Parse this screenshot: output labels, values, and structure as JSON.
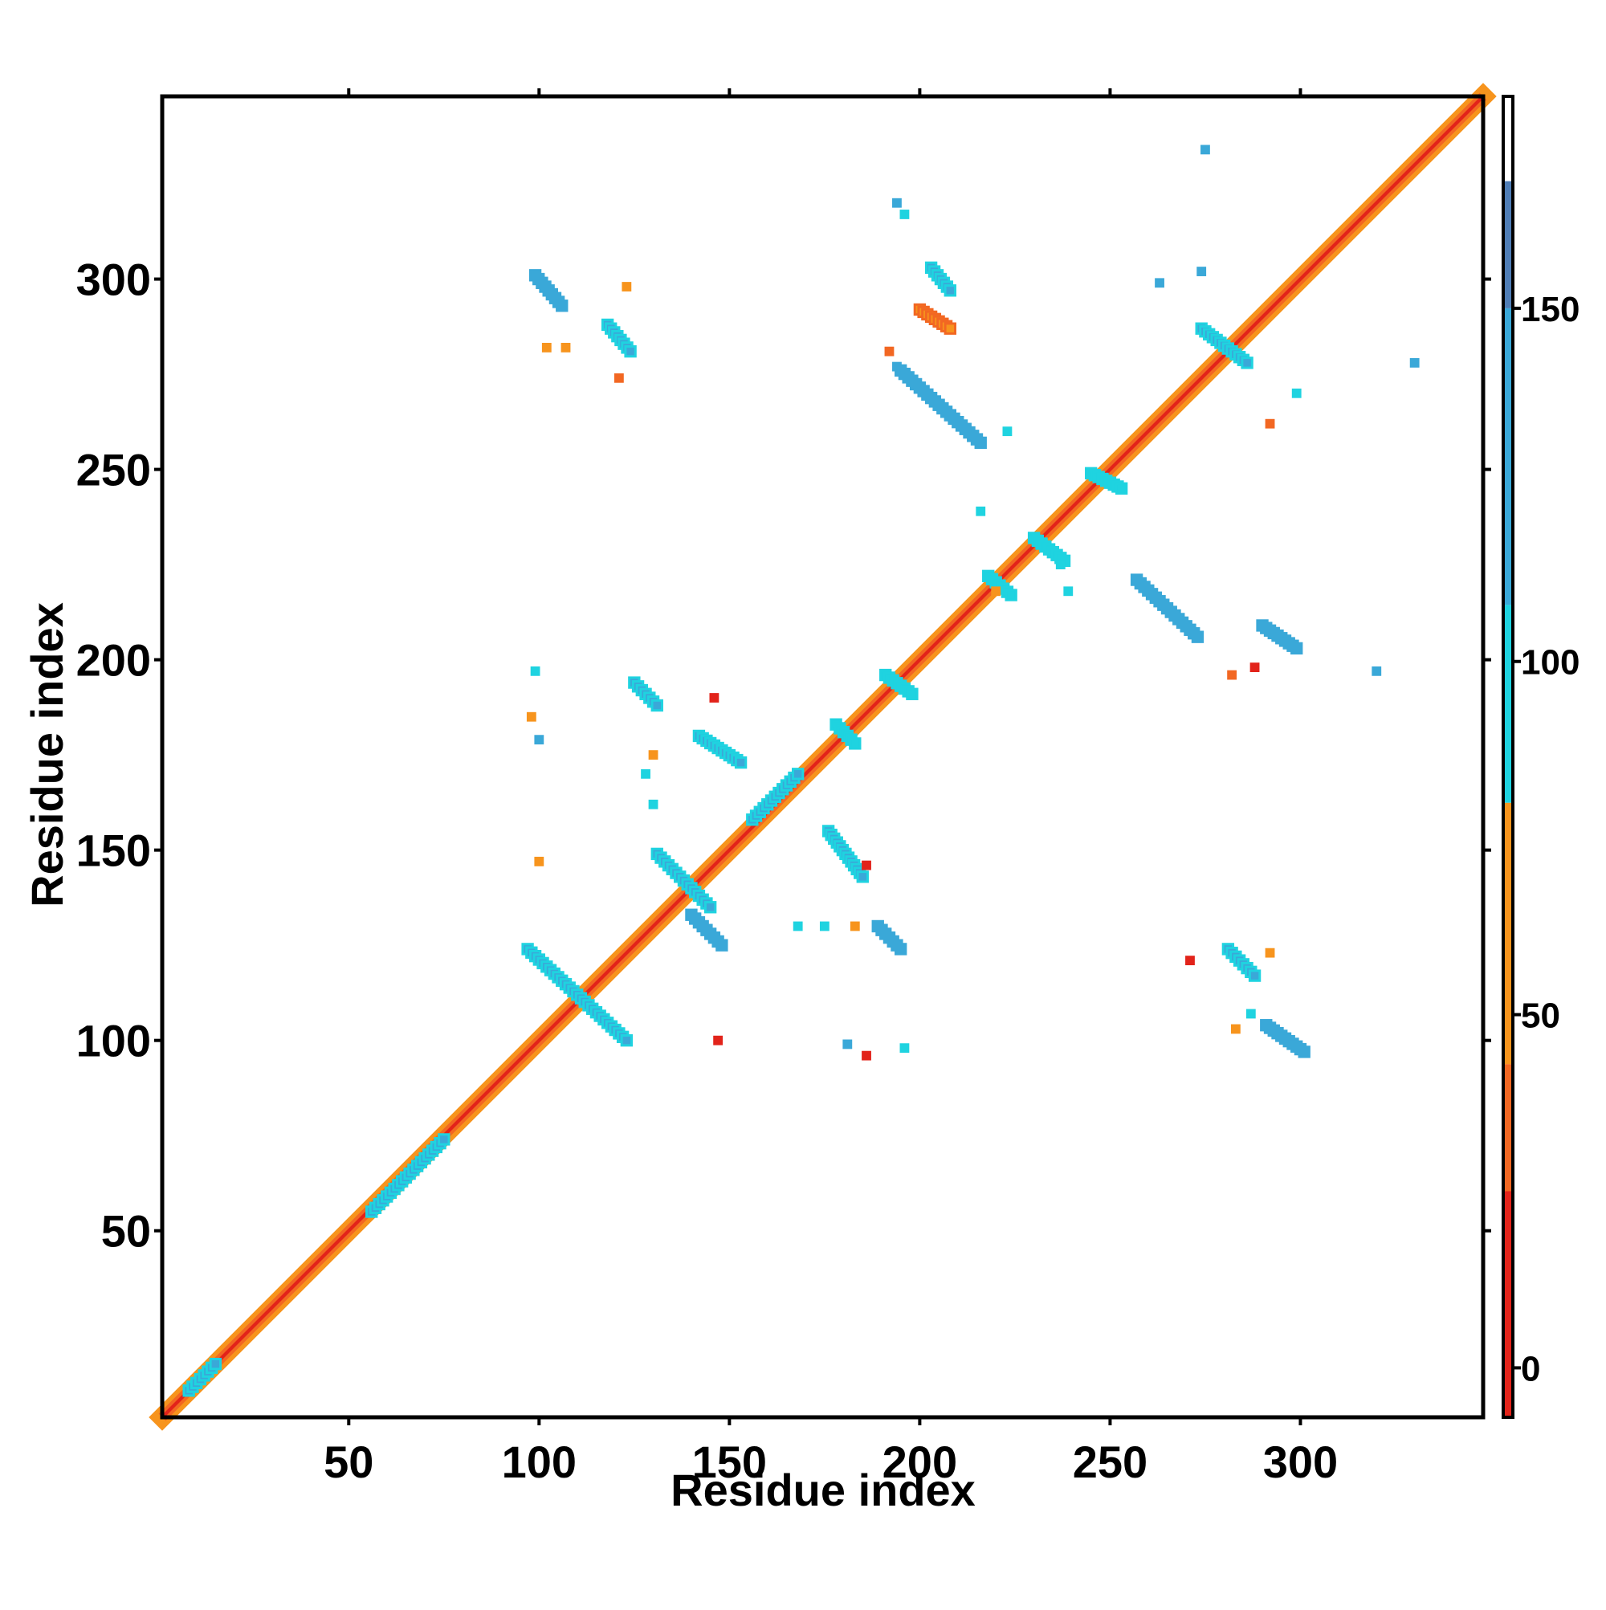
{
  "chart_data": {
    "type": "heatmap",
    "title": "",
    "xlabel": "Residue index",
    "ylabel": "Residue index",
    "xlim": [
      1,
      348
    ],
    "ylim": [
      1,
      348
    ],
    "x_ticks": [
      50,
      100,
      150,
      200,
      250,
      300
    ],
    "y_ticks": [
      50,
      100,
      150,
      200,
      250,
      300
    ],
    "grid": false,
    "colorbar": {
      "range": [
        -7,
        180
      ],
      "ticks": [
        0,
        50,
        100,
        150
      ],
      "bands": [
        {
          "from": -7,
          "to": 25,
          "color": "#e2231a"
        },
        {
          "from": 25,
          "to": 43,
          "color": "#f26722"
        },
        {
          "from": 43,
          "to": 80,
          "color": "#f7941d"
        },
        {
          "from": 80,
          "to": 108,
          "color": "#1fd3e0"
        },
        {
          "from": 108,
          "to": 150,
          "color": "#3aa8d8"
        },
        {
          "from": 150,
          "to": 168,
          "color": "#4f7db5"
        },
        {
          "from": 168,
          "to": 180,
          "color": "#ffffff"
        }
      ]
    },
    "diagonal": {
      "from": 1,
      "to": 348,
      "color": "#f26722"
    },
    "contact_segments": [
      {
        "x1": 97,
        "y1": 124,
        "x2": 123,
        "y2": 100,
        "value": 115
      },
      {
        "x1": 99,
        "y1": 301,
        "x2": 106,
        "y2": 293,
        "value": 130
      },
      {
        "x1": 118,
        "y1": 288,
        "x2": 124,
        "y2": 281,
        "value": 120
      },
      {
        "x1": 125,
        "y1": 194,
        "x2": 131,
        "y2": 188,
        "value": 125
      },
      {
        "x1": 131,
        "y1": 149,
        "x2": 145,
        "y2": 135,
        "value": 120
      },
      {
        "x1": 142,
        "y1": 180,
        "x2": 153,
        "y2": 173,
        "value": 125
      },
      {
        "x1": 140,
        "y1": 133,
        "x2": 148,
        "y2": 125,
        "value": 130
      },
      {
        "x1": 156,
        "y1": 158,
        "x2": 168,
        "y2": 170,
        "value": 110
      },
      {
        "x1": 176,
        "y1": 155,
        "x2": 185,
        "y2": 143,
        "value": 120
      },
      {
        "x1": 189,
        "y1": 130,
        "x2": 195,
        "y2": 124,
        "value": 130
      },
      {
        "x1": 195,
        "y1": 276,
        "x2": 216,
        "y2": 257,
        "value": 130
      },
      {
        "x1": 203,
        "y1": 303,
        "x2": 208,
        "y2": 297,
        "value": 125
      },
      {
        "x1": 200,
        "y1": 292,
        "x2": 208,
        "y2": 287,
        "value": 45
      },
      {
        "x1": 257,
        "y1": 221,
        "x2": 273,
        "y2": 206,
        "value": 130
      },
      {
        "x1": 274,
        "y1": 287,
        "x2": 286,
        "y2": 278,
        "value": 125
      },
      {
        "x1": 290,
        "y1": 209,
        "x2": 299,
        "y2": 203,
        "value": 130
      },
      {
        "x1": 281,
        "y1": 124,
        "x2": 288,
        "y2": 117,
        "value": 120
      },
      {
        "x1": 291,
        "y1": 104,
        "x2": 301,
        "y2": 97,
        "value": 130
      },
      {
        "x1": 56,
        "y1": 55,
        "x2": 75,
        "y2": 74,
        "value": 112
      },
      {
        "x1": 8,
        "y1": 8,
        "x2": 15,
        "y2": 15,
        "value": 112
      },
      {
        "x1": 245,
        "y1": 249,
        "x2": 253,
        "y2": 245,
        "value": 100
      },
      {
        "x1": 218,
        "y1": 222,
        "x2": 224,
        "y2": 217,
        "value": 100
      },
      {
        "x1": 230,
        "y1": 232,
        "x2": 238,
        "y2": 226,
        "value": 100
      },
      {
        "x1": 178,
        "y1": 183,
        "x2": 183,
        "y2": 178,
        "value": 100
      },
      {
        "x1": 191,
        "y1": 196,
        "x2": 198,
        "y2": 191,
        "value": 100
      }
    ],
    "contact_points": [
      {
        "x": 102,
        "y": 282,
        "value": 55
      },
      {
        "x": 107,
        "y": 282,
        "value": 55
      },
      {
        "x": 121,
        "y": 274,
        "value": 30
      },
      {
        "x": 123,
        "y": 298,
        "value": 60
      },
      {
        "x": 192,
        "y": 281,
        "value": 30
      },
      {
        "x": 194,
        "y": 277,
        "value": 110
      },
      {
        "x": 194,
        "y": 320,
        "value": 125
      },
      {
        "x": 196,
        "y": 317,
        "value": 100
      },
      {
        "x": 275,
        "y": 334,
        "value": 140
      },
      {
        "x": 330,
        "y": 278,
        "value": 140
      },
      {
        "x": 292,
        "y": 262,
        "value": 40
      },
      {
        "x": 299,
        "y": 270,
        "value": 100
      },
      {
        "x": 216,
        "y": 239,
        "value": 100
      },
      {
        "x": 220,
        "y": 218,
        "value": 60
      },
      {
        "x": 239,
        "y": 218,
        "value": 100
      },
      {
        "x": 237,
        "y": 225,
        "value": 100
      },
      {
        "x": 99,
        "y": 197,
        "value": 100
      },
      {
        "x": 100,
        "y": 179,
        "value": 130
      },
      {
        "x": 98,
        "y": 185,
        "value": 45
      },
      {
        "x": 130,
        "y": 175,
        "value": 50
      },
      {
        "x": 128,
        "y": 170,
        "value": 100
      },
      {
        "x": 130,
        "y": 162,
        "value": 100
      },
      {
        "x": 100,
        "y": 147,
        "value": 45
      },
      {
        "x": 146,
        "y": 190,
        "value": 20
      },
      {
        "x": 147,
        "y": 100,
        "value": 20
      },
      {
        "x": 183,
        "y": 130,
        "value": 45
      },
      {
        "x": 168,
        "y": 130,
        "value": 100
      },
      {
        "x": 175,
        "y": 130,
        "value": 100
      },
      {
        "x": 186,
        "y": 146,
        "value": 20
      },
      {
        "x": 181,
        "y": 99,
        "value": 130
      },
      {
        "x": 186,
        "y": 96,
        "value": 20
      },
      {
        "x": 196,
        "y": 98,
        "value": 100
      },
      {
        "x": 271,
        "y": 121,
        "value": 20
      },
      {
        "x": 292,
        "y": 123,
        "value": 50
      },
      {
        "x": 283,
        "y": 103,
        "value": 55
      },
      {
        "x": 287,
        "y": 107,
        "value": 100
      },
      {
        "x": 282,
        "y": 196,
        "value": 30
      },
      {
        "x": 288,
        "y": 198,
        "value": 20
      },
      {
        "x": 320,
        "y": 197,
        "value": 110
      },
      {
        "x": 263,
        "y": 299,
        "value": 110
      },
      {
        "x": 274,
        "y": 302,
        "value": 110
      },
      {
        "x": 223,
        "y": 260,
        "value": 100
      }
    ]
  }
}
